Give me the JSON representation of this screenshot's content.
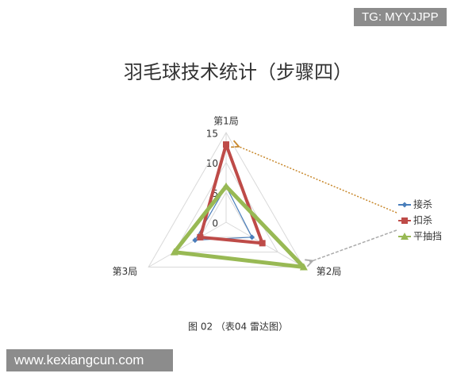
{
  "chart_data": {
    "type": "radar",
    "title": "羽毛球技术统计（步骤四）",
    "caption": "图 02 （表04 雷达图）",
    "categories": [
      "第1局",
      "第2局",
      "第3局"
    ],
    "series": [
      {
        "name": "接杀",
        "color": "#4a7ebb",
        "values": [
          6,
          5,
          6
        ]
      },
      {
        "name": "扣杀",
        "color": "#be4b48",
        "values": [
          13,
          7,
          5
        ]
      },
      {
        "name": "平抽挡",
        "color": "#98b954",
        "values": [
          6,
          15,
          10
        ]
      }
    ],
    "ylim": [
      0,
      15
    ],
    "yticks": [
      0,
      5,
      10,
      15
    ],
    "grid": true,
    "legend": "right"
  },
  "watermarks": [
    "TG: MYYJJPP",
    "www.kexiangcun.com"
  ]
}
